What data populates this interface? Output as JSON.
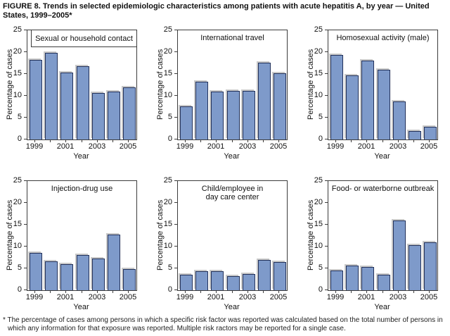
{
  "figure": {
    "title": "FIGURE 8. Trends in selected epidemiologic characteristics among patients with acute hepatitis A, by year — United States, 1999–2005*",
    "footnote": "* The percentage of cases among persons in which a specific risk factor was reported was calculated based on the total number of persons in which any information for that exposure was reported. Multiple risk ractors may be reported for a single case."
  },
  "colors": {
    "bar_fill": "#7E9ACA",
    "bar_border": "#22315A",
    "bar_shadow": "#C9C9C9",
    "axis": "#3C3C3C"
  },
  "chart_data": [
    {
      "type": "bar",
      "title": "Sexual or household contact",
      "title_boxed": true,
      "categories": [
        "1999",
        "2000",
        "2001",
        "2002",
        "2003",
        "2004",
        "2005"
      ],
      "values": [
        18.3,
        19.8,
        15.3,
        16.7,
        10.7,
        11.0,
        12.0
      ],
      "xlabel": "Year",
      "ylabel": "Percentage of cases",
      "ylim": [
        0,
        25
      ],
      "yticks": [
        0,
        5,
        10,
        15,
        20,
        25
      ],
      "xtick_labels": [
        "1999",
        "",
        "2001",
        "",
        "2003",
        "",
        "2005"
      ],
      "grid": false,
      "legend": "none"
    },
    {
      "type": "bar",
      "title": "International travel",
      "title_boxed": false,
      "categories": [
        "1999",
        "2000",
        "2001",
        "2002",
        "2003",
        "2004",
        "2005"
      ],
      "values": [
        7.6,
        13.2,
        11.0,
        11.1,
        11.1,
        17.5,
        15.1
      ],
      "xlabel": "Year",
      "ylabel": "Percentage of cases",
      "ylim": [
        0,
        25
      ],
      "yticks": [
        0,
        5,
        10,
        15,
        20,
        25
      ],
      "xtick_labels": [
        "1999",
        "",
        "2001",
        "",
        "2003",
        "",
        "2005"
      ],
      "grid": false,
      "legend": "none"
    },
    {
      "type": "bar",
      "title": "Homosexual activity (male)",
      "title_boxed": false,
      "categories": [
        "1999",
        "2000",
        "2001",
        "2002",
        "2003",
        "2004",
        "2005"
      ],
      "values": [
        19.3,
        14.7,
        18.1,
        15.9,
        8.7,
        2.0,
        2.9
      ],
      "xlabel": "Year",
      "ylabel": "Percentage of cases",
      "ylim": [
        0,
        25
      ],
      "yticks": [
        0,
        5,
        10,
        15,
        20,
        25
      ],
      "xtick_labels": [
        "1999",
        "",
        "2001",
        "",
        "2003",
        "",
        "2005"
      ],
      "grid": false,
      "legend": "none"
    },
    {
      "type": "bar",
      "title": "Injection-drug use",
      "title_boxed": false,
      "categories": [
        "1999",
        "2000",
        "2001",
        "2002",
        "2003",
        "2004",
        "2005"
      ],
      "values": [
        8.6,
        6.6,
        5.9,
        8.0,
        7.3,
        12.7,
        4.8
      ],
      "xlabel": "Year",
      "ylabel": "Percentage of cases",
      "ylim": [
        0,
        25
      ],
      "yticks": [
        0,
        5,
        10,
        15,
        20,
        25
      ],
      "xtick_labels": [
        "1999",
        "",
        "2001",
        "",
        "2003",
        "",
        "2005"
      ],
      "grid": false,
      "legend": "none"
    },
    {
      "type": "bar",
      "title": "Child/employee in\nday care center",
      "title_boxed": false,
      "categories": [
        "1999",
        "2000",
        "2001",
        "2002",
        "2003",
        "2004",
        "2005"
      ],
      "values": [
        3.6,
        4.4,
        4.4,
        3.3,
        3.7,
        6.9,
        6.5
      ],
      "xlabel": "Year",
      "ylabel": "Percentage of cases",
      "ylim": [
        0,
        25
      ],
      "yticks": [
        0,
        5,
        10,
        15,
        20,
        25
      ],
      "xtick_labels": [
        "1999",
        "",
        "2001",
        "",
        "2003",
        "",
        "2005"
      ],
      "grid": false,
      "legend": "none"
    },
    {
      "type": "bar",
      "title": "Food- or waterborne outbreak",
      "title_boxed": false,
      "categories": [
        "1999",
        "2000",
        "2001",
        "2002",
        "2003",
        "2004",
        "2005"
      ],
      "values": [
        4.5,
        5.7,
        5.4,
        3.5,
        16.0,
        10.3,
        11.0
      ],
      "xlabel": "Year",
      "ylabel": "Percentage of cases",
      "ylim": [
        0,
        25
      ],
      "yticks": [
        0,
        5,
        10,
        15,
        20,
        25
      ],
      "xtick_labels": [
        "1999",
        "",
        "2001",
        "",
        "2003",
        "",
        "2005"
      ],
      "grid": false,
      "legend": "none"
    }
  ]
}
